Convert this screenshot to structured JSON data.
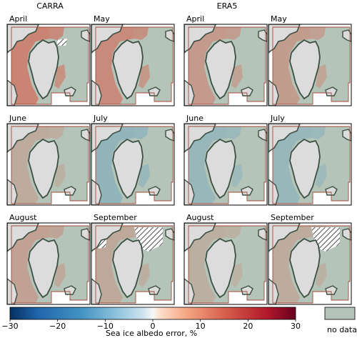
{
  "chart_data": {
    "type": "heatmap",
    "columns": [
      {
        "title": "CARRA",
        "months": [
          "April",
          "May",
          "June",
          "July",
          "August",
          "September"
        ]
      },
      {
        "title": "ERA5",
        "months": [
          "April",
          "May",
          "June",
          "July",
          "August",
          "September"
        ]
      }
    ],
    "colorbar": {
      "label": "Sea ice albedo error, %",
      "vmin": -30,
      "vmax": 30,
      "ticks": [
        -30,
        -20,
        -10,
        0,
        10,
        20,
        30
      ],
      "tick_labels": [
        "−30",
        "−20",
        "−10",
        "0",
        "10",
        "20",
        "30"
      ],
      "colormap": "RdBu_r"
    },
    "no_data": {
      "label": "no data",
      "color": "#b5c4b8"
    },
    "panels": [
      {
        "model": "CARRA",
        "month": "April",
        "error_level": 14,
        "sign": "positive"
      },
      {
        "model": "CARRA",
        "month": "May",
        "error_level": 12,
        "sign": "positive"
      },
      {
        "model": "CARRA",
        "month": "June",
        "error_level": 3,
        "sign": "mixed"
      },
      {
        "model": "CARRA",
        "month": "July",
        "error_level": -4,
        "sign": "negative"
      },
      {
        "model": "CARRA",
        "month": "August",
        "error_level": 6,
        "sign": "mixed"
      },
      {
        "model": "CARRA",
        "month": "September",
        "error_level": 4,
        "sign": "mixed"
      },
      {
        "model": "ERA5",
        "month": "April",
        "error_level": 8,
        "sign": "positive"
      },
      {
        "model": "ERA5",
        "month": "May",
        "error_level": 7,
        "sign": "positive"
      },
      {
        "model": "ERA5",
        "month": "June",
        "error_level": -3,
        "sign": "negative"
      },
      {
        "model": "ERA5",
        "month": "July",
        "error_level": -3,
        "sign": "negative"
      },
      {
        "model": "ERA5",
        "month": "August",
        "error_level": 2,
        "sign": "mixed"
      },
      {
        "model": "ERA5",
        "month": "September",
        "error_level": 3,
        "sign": "mixed"
      }
    ],
    "colors": {
      "land": "#dcdcdc",
      "nodata": "#b5c4b8",
      "coast": "#3b4f43",
      "domain": "#a04a3a"
    }
  }
}
